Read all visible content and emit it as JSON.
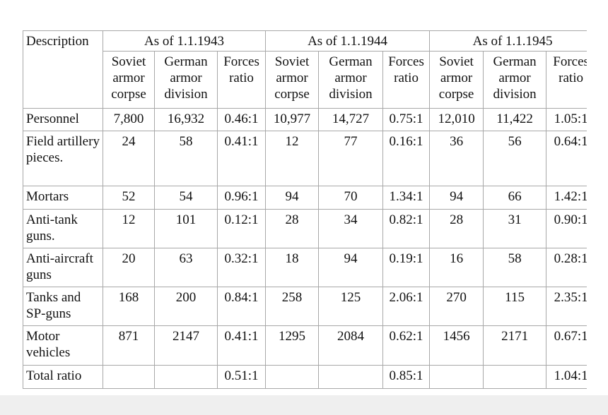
{
  "table": {
    "header": {
      "description": "Description",
      "groups": [
        "As of 1.1.1943",
        "As of 1.1.1944",
        "As of 1.1.1945"
      ],
      "subheaders": [
        "Soviet armor corpse",
        "German armor division",
        "Forces ratio",
        "Soviet armor corpse",
        "German armor division",
        "Forces ratio",
        "Soviet armor corpse",
        "German armor division",
        "Forces ratio"
      ]
    },
    "rows": [
      [
        "Personnel",
        "7,800",
        "16,932",
        "0.46:1",
        "10,977",
        "14,727",
        "0.75:1",
        "12,010",
        "11,422",
        "1.05:1"
      ],
      [
        "Field artillery pieces.",
        "24",
        "58",
        "0.41:1",
        "12",
        "77",
        "0.16:1",
        "36",
        "56",
        "0.64:1"
      ],
      [
        "Mortars",
        "52",
        "54",
        "0.96:1",
        "94",
        "70",
        "1.34:1",
        "94",
        "66",
        "1.42:1"
      ],
      [
        "Anti-tank guns.",
        "12",
        "101",
        "0.12:1",
        "28",
        "34",
        "0.82:1",
        "28",
        "31",
        "0.90:1"
      ],
      [
        "Anti-aircraft guns",
        "20",
        "63",
        "0.32:1",
        "18",
        "94",
        "0.19:1",
        "16",
        "58",
        "0.28:1"
      ],
      [
        "Tanks and SP-guns",
        "168",
        "200",
        "0.84:1",
        "258",
        "125",
        "2.06:1",
        "270",
        "115",
        "2.35:1"
      ],
      [
        "Motor vehicles",
        "871",
        "2147",
        "0.41:1",
        "1295",
        "2084",
        "0.62:1",
        "1456",
        "2171",
        "0.67:1"
      ],
      [
        "Total ratio",
        null,
        null,
        "0.51:1",
        null,
        null,
        "0.85:1",
        null,
        null,
        "1.04:1"
      ]
    ]
  }
}
